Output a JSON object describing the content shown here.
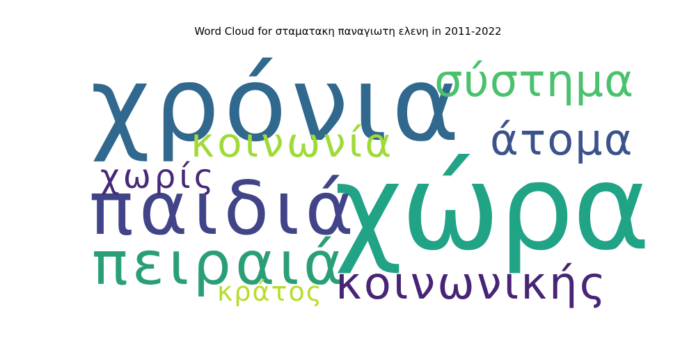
{
  "title": "Word Cloud for σταματακη παναγιωτη ελενη in 2011-2022",
  "words": [
    {
      "text": "χρόνια",
      "color": "#31688e"
    },
    {
      "text": "χώρα",
      "color": "#21a386"
    },
    {
      "text": "παιδιά",
      "color": "#414487"
    },
    {
      "text": "σύστημα",
      "color": "#4ac16d"
    },
    {
      "text": "κοινωνία",
      "color": "#a0da39"
    },
    {
      "text": "άτομα",
      "color": "#3b528b"
    },
    {
      "text": "χωρίς",
      "color": "#482878"
    },
    {
      "text": "πειραιά",
      "color": "#2a9f76"
    },
    {
      "text": "κοινωνικής",
      "color": "#482475"
    },
    {
      "text": "κράτος",
      "color": "#b5de2b"
    }
  ]
}
